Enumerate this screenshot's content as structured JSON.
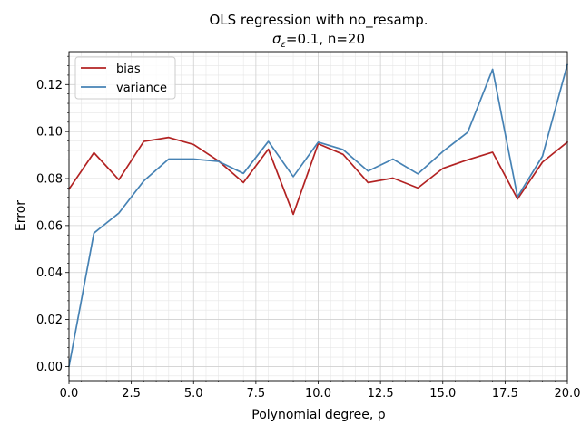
{
  "chart_data": {
    "type": "line",
    "title_line1": "OLS regression with no_resamp.",
    "title_sigma_symbol": "σ",
    "title_sigma_subscript": "ε",
    "title_line2_rest": "=0.1,  n=20",
    "xlabel": "Polynomial degree, p",
    "ylabel": "Error",
    "xlim": [
      0,
      20
    ],
    "ylim": [
      -0.006,
      0.134
    ],
    "xticks": [
      0.0,
      2.5,
      5.0,
      7.5,
      10.0,
      12.5,
      15.0,
      17.5,
      20.0
    ],
    "xtick_labels": [
      "0.0",
      "2.5",
      "5.0",
      "7.5",
      "10.0",
      "12.5",
      "15.0",
      "17.5",
      "20.0"
    ],
    "yticks": [
      0.0,
      0.02,
      0.04,
      0.06,
      0.08,
      0.1,
      0.12
    ],
    "ytick_labels": [
      "0.00",
      "0.02",
      "0.04",
      "0.06",
      "0.08",
      "0.10",
      "0.12"
    ],
    "grid": true,
    "legend_position": "top-left",
    "x": [
      0,
      1,
      2,
      3,
      4,
      5,
      6,
      7,
      8,
      9,
      10,
      11,
      12,
      13,
      14,
      15,
      16,
      17,
      18,
      19,
      20
    ],
    "series": [
      {
        "name": "bias",
        "color": "#b22222",
        "values": [
          0.0755,
          0.091,
          0.0795,
          0.0958,
          0.0975,
          0.0945,
          0.0875,
          0.0783,
          0.0925,
          0.0648,
          0.0948,
          0.0903,
          0.0783,
          0.0802,
          0.076,
          0.0843,
          0.088,
          0.0912,
          0.0713,
          0.087,
          0.0955
        ]
      },
      {
        "name": "variance",
        "color": "#4682b4",
        "values": [
          0.0,
          0.0568,
          0.0653,
          0.079,
          0.0883,
          0.0883,
          0.0873,
          0.0822,
          0.0958,
          0.0808,
          0.0955,
          0.0923,
          0.0832,
          0.0883,
          0.082,
          0.0915,
          0.0997,
          0.1265,
          0.0722,
          0.0895,
          0.1285
        ]
      }
    ]
  }
}
